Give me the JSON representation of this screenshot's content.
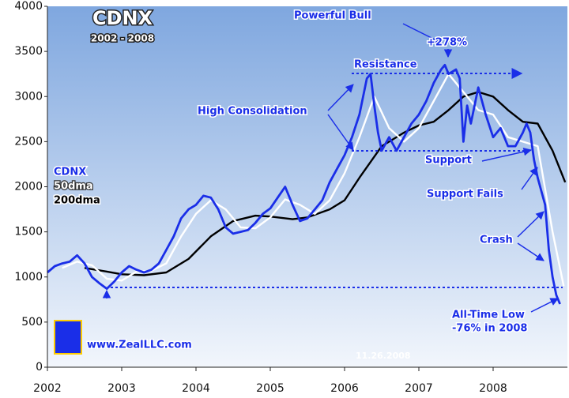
{
  "chart_data": {
    "type": "line",
    "title": "CDNX",
    "subtitle": "2002 - 2008",
    "xlim": [
      2002,
      2009
    ],
    "xticks": [
      2002,
      2003,
      2004,
      2005,
      2006,
      2007,
      2008
    ],
    "ylim": [
      0,
      4000
    ],
    "yticks": [
      0,
      500,
      1000,
      1500,
      2000,
      2500,
      3000,
      3500,
      4000
    ],
    "grid": false,
    "series": [
      {
        "name": "200dma",
        "color": "#000000",
        "x": [
          2002.5,
          2002.8,
          2003.0,
          2003.3,
          2003.6,
          2003.9,
          2004.2,
          2004.5,
          2004.8,
          2005.0,
          2005.3,
          2005.5,
          2005.8,
          2006.0,
          2006.2,
          2006.5,
          2006.8,
          2007.0,
          2007.2,
          2007.4,
          2007.6,
          2007.8,
          2008.0,
          2008.2,
          2008.4,
          2008.6,
          2008.8,
          2008.97
        ],
        "values": [
          1100,
          1060,
          1030,
          1020,
          1050,
          1200,
          1450,
          1620,
          1680,
          1670,
          1640,
          1660,
          1750,
          1850,
          2100,
          2450,
          2600,
          2680,
          2720,
          2850,
          3000,
          3050,
          3000,
          2850,
          2720,
          2700,
          2400,
          2050
        ]
      },
      {
        "name": "50dma",
        "color": "#ffffff",
        "x": [
          2002.2,
          2002.4,
          2002.6,
          2002.8,
          2003.0,
          2003.2,
          2003.4,
          2003.6,
          2003.8,
          2004.0,
          2004.2,
          2004.4,
          2004.6,
          2004.8,
          2005.0,
          2005.2,
          2005.4,
          2005.6,
          2005.8,
          2006.0,
          2006.2,
          2006.4,
          2006.6,
          2006.8,
          2007.0,
          2007.2,
          2007.4,
          2007.6,
          2007.8,
          2008.0,
          2008.2,
          2008.4,
          2008.6,
          2008.8,
          2008.95
        ],
        "values": [
          1100,
          1170,
          1130,
          980,
          960,
          1060,
          1070,
          1150,
          1450,
          1700,
          1850,
          1750,
          1550,
          1540,
          1660,
          1860,
          1800,
          1700,
          1850,
          2150,
          2550,
          3000,
          2650,
          2500,
          2650,
          2950,
          3250,
          3050,
          2850,
          2800,
          2550,
          2500,
          2450,
          1500,
          900
        ]
      },
      {
        "name": "CDNX",
        "color": "#1a2ee8",
        "x": [
          2002.0,
          2002.1,
          2002.2,
          2002.3,
          2002.4,
          2002.5,
          2002.6,
          2002.7,
          2002.8,
          2002.9,
          2003.0,
          2003.1,
          2003.2,
          2003.3,
          2003.4,
          2003.5,
          2003.6,
          2003.7,
          2003.8,
          2003.9,
          2004.0,
          2004.1,
          2004.2,
          2004.3,
          2004.4,
          2004.5,
          2004.6,
          2004.7,
          2004.8,
          2004.9,
          2005.0,
          2005.1,
          2005.2,
          2005.3,
          2005.4,
          2005.5,
          2005.6,
          2005.7,
          2005.8,
          2005.9,
          2006.0,
          2006.1,
          2006.2,
          2006.3,
          2006.35,
          2006.4,
          2006.45,
          2006.5,
          2006.6,
          2006.7,
          2006.8,
          2006.9,
          2007.0,
          2007.1,
          2007.2,
          2007.3,
          2007.35,
          2007.4,
          2007.5,
          2007.55,
          2007.6,
          2007.65,
          2007.7,
          2007.8,
          2007.9,
          2008.0,
          2008.1,
          2008.2,
          2008.3,
          2008.4,
          2008.45,
          2008.5,
          2008.55,
          2008.6,
          2008.7,
          2008.75,
          2008.8,
          2008.85,
          2008.9
        ],
        "values": [
          1050,
          1120,
          1150,
          1170,
          1240,
          1150,
          1000,
          930,
          870,
          950,
          1050,
          1120,
          1080,
          1050,
          1080,
          1150,
          1300,
          1450,
          1650,
          1750,
          1800,
          1900,
          1880,
          1750,
          1550,
          1480,
          1500,
          1520,
          1600,
          1700,
          1760,
          1880,
          2000,
          1800,
          1620,
          1650,
          1750,
          1850,
          2050,
          2200,
          2350,
          2550,
          2800,
          3200,
          3250,
          2900,
          2600,
          2400,
          2550,
          2400,
          2550,
          2700,
          2800,
          2950,
          3150,
          3300,
          3350,
          3250,
          3300,
          3200,
          2500,
          2900,
          2700,
          3100,
          2800,
          2550,
          2650,
          2450,
          2450,
          2600,
          2700,
          2600,
          2300,
          2100,
          1800,
          1300,
          1000,
          800,
          700
        ]
      }
    ],
    "annotations": [
      "Powerful Bull",
      "+278%",
      "Resistance",
      "High Consolidation",
      "Support",
      "Support Fails",
      "Crash",
      "All-Time Low",
      "-76% in 2008",
      "www.ZealLLC.com",
      "11.26.2008"
    ]
  }
}
